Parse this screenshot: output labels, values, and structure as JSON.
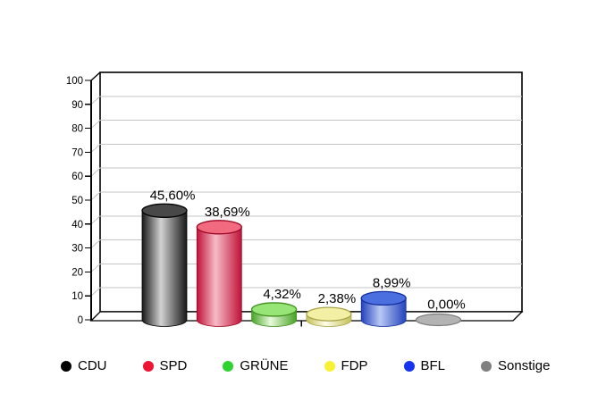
{
  "chart_data": {
    "type": "bar",
    "style": "3d-cylinder",
    "title": "",
    "categories": [
      "CDU",
      "SPD",
      "GRÜNE",
      "FDP",
      "BFL",
      "Sonstige"
    ],
    "values": [
      45.6,
      38.69,
      4.32,
      2.38,
      8.99,
      0.0
    ],
    "value_labels": [
      "45,60%",
      "38,69%",
      "4,32%",
      "2,38%",
      "8,99%",
      "0,00%"
    ],
    "ylim": [
      0,
      100
    ],
    "ytick_step": 10,
    "ytick_labels": [
      "0",
      "10",
      "20",
      "30",
      "40",
      "50",
      "60",
      "70",
      "80",
      "90",
      "100"
    ],
    "xlabel": "",
    "ylabel": "",
    "grid": true,
    "grid_color": "#c6c6c6",
    "legend_position": "bottom",
    "background_color": "#ffffff",
    "series": [
      {
        "name": "CDU",
        "value": 45.6,
        "value_label": "45,60%",
        "colors": {
          "edge": "#181818",
          "mid": "#d2d2d2",
          "top": "#484848",
          "rim": "#000000",
          "legend_dot": "#000000"
        }
      },
      {
        "name": "SPD",
        "value": 38.69,
        "value_label": "38,69%",
        "colors": {
          "edge": "#bf1238",
          "mid": "#f7bac6",
          "top": "#f16a80",
          "rim": "#9d0824",
          "legend_dot": "#ee1433"
        }
      },
      {
        "name": "GRÜNE",
        "value": 4.32,
        "value_label": "4,32%",
        "colors": {
          "edge": "#48a326",
          "mid": "#e8fadb",
          "top": "#97e477",
          "rim": "#418f1f",
          "legend_dot": "#2fd32f"
        }
      },
      {
        "name": "FDP",
        "value": 2.38,
        "value_label": "2,38%",
        "colors": {
          "edge": "#c5c158",
          "mid": "#fefdea",
          "top": "#f3f0a6",
          "rim": "#a9a54b",
          "legend_dot": "#f6f233"
        }
      },
      {
        "name": "BFL",
        "value": 8.99,
        "value_label": "8,99%",
        "colors": {
          "edge": "#2243bc",
          "mid": "#b9c8f4",
          "top": "#4b6fdf",
          "rim": "#152f9f",
          "legend_dot": "#1433ef"
        }
      },
      {
        "name": "Sonstige",
        "value": 0.0,
        "value_label": "0,00%",
        "colors": {
          "edge": "#9a9a9a",
          "mid": "#c6c6c6",
          "top": "#b3b3b3",
          "rim": "#7c7c7c",
          "legend_dot": "#7f7f7f"
        }
      }
    ]
  }
}
